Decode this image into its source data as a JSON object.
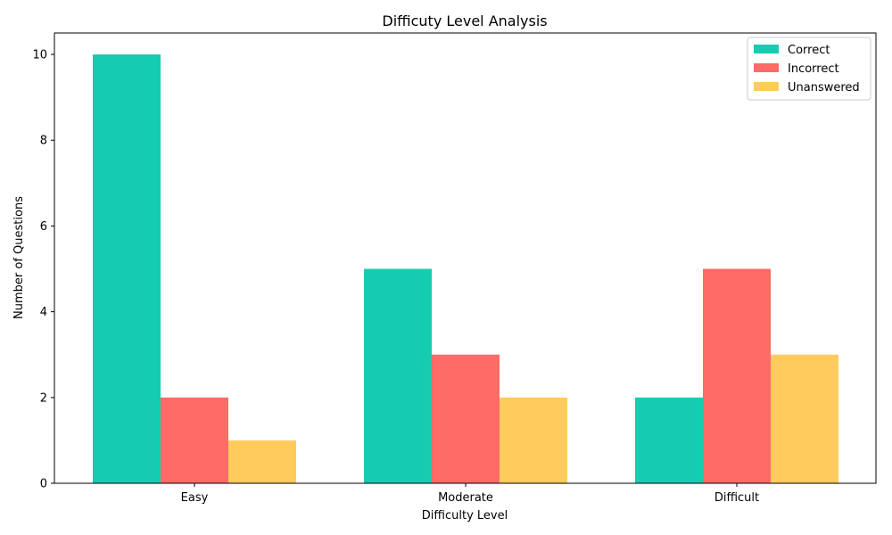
{
  "chart_data": {
    "type": "bar",
    "title": "Difficuty Level Analysis",
    "xlabel": "Difficulty Level",
    "ylabel": "Number of Questions",
    "categories": [
      "Easy",
      "Moderate",
      "Difficult"
    ],
    "series": [
      {
        "name": "Correct",
        "values": [
          10,
          5,
          2
        ],
        "color": "#16CCB0"
      },
      {
        "name": "Incorrect",
        "values": [
          2,
          3,
          5
        ],
        "color": "#FF6B67"
      },
      {
        "name": "Unanswered",
        "values": [
          1,
          2,
          3
        ],
        "color": "#FFCB5C"
      }
    ],
    "ylim": [
      0,
      10.5
    ],
    "yticks": [
      0,
      2,
      4,
      6,
      8,
      10
    ],
    "grid": false,
    "legend_position": "top-right"
  }
}
